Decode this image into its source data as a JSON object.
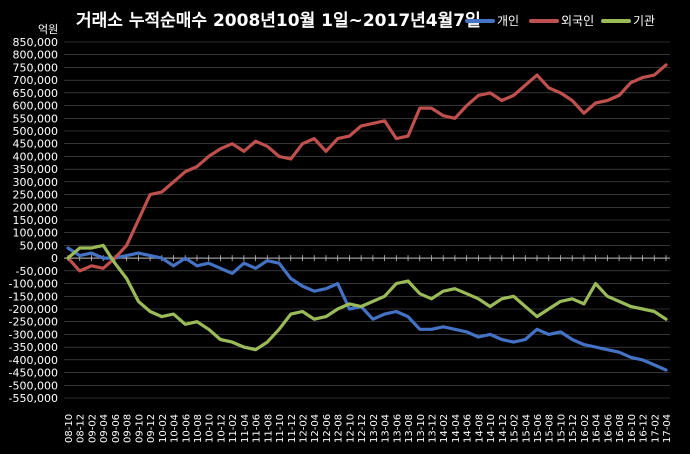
{
  "chart_data": {
    "type": "line",
    "title": "거래소 누적순매수 2008년10월 1일~2017년4월7일",
    "y_unit_label": "억원",
    "ylim": [
      -550000,
      850000
    ],
    "y_ticks": [
      850000,
      800000,
      750000,
      700000,
      650000,
      600000,
      550000,
      500000,
      450000,
      400000,
      350000,
      300000,
      250000,
      200000,
      150000,
      100000,
      50000,
      0,
      -50000,
      -100000,
      -150000,
      -200000,
      -250000,
      -300000,
      -350000,
      -400000,
      -450000,
      -500000,
      -550000
    ],
    "y_tick_labels": [
      "850,000",
      "800,000",
      "750,000",
      "700,000",
      "650,000",
      "600,000",
      "550,000",
      "500,000",
      "450,000",
      "400,000",
      "350,000",
      "300,000",
      "250,000",
      "200,000",
      "150,000",
      "100,000",
      "50,000",
      "0",
      "-50,000",
      "-100,000",
      "-150,000",
      "-200,000",
      "-250,000",
      "-300,000",
      "-350,000",
      "-400,000",
      "-450,000",
      "-500,000",
      "-550,000"
    ],
    "categories": [
      "08-10",
      "08-12",
      "09-02",
      "09-04",
      "09-06",
      "09-08",
      "09-10",
      "09-12",
      "10-02",
      "10-04",
      "10-06",
      "10-08",
      "10-10",
      "10-12",
      "11-02",
      "11-04",
      "11-06",
      "11-08",
      "11-10",
      "11-12",
      "12-02",
      "12-04",
      "12-06",
      "12-08",
      "12-10",
      "12-12",
      "13-02",
      "13-04",
      "13-06",
      "13-08",
      "13-10",
      "13-12",
      "14-02",
      "14-04",
      "14-06",
      "14-08",
      "14-10",
      "14-12",
      "15-02",
      "15-04",
      "15-06",
      "15-08",
      "15-10",
      "15-12",
      "16-02",
      "16-04",
      "16-06",
      "16-08",
      "16-10",
      "16-12",
      "17-02",
      "17-04"
    ],
    "grid": "horizontal",
    "legend_position": "top-right",
    "series": [
      {
        "name": "개인",
        "color": "#4472C4",
        "values": [
          40000,
          10000,
          20000,
          0,
          0,
          10000,
          20000,
          10000,
          0,
          -30000,
          0,
          -30000,
          -20000,
          -40000,
          -60000,
          -20000,
          -40000,
          -10000,
          -20000,
          -80000,
          -110000,
          -130000,
          -120000,
          -100000,
          -200000,
          -190000,
          -240000,
          -220000,
          -210000,
          -230000,
          -280000,
          -280000,
          -270000,
          -280000,
          -290000,
          -310000,
          -300000,
          -320000,
          -330000,
          -320000,
          -280000,
          -300000,
          -290000,
          -320000,
          -340000,
          -350000,
          -360000,
          -370000,
          -390000,
          -400000,
          -420000,
          -440000
        ]
      },
      {
        "name": "외국인",
        "color": "#C0504D",
        "values": [
          0,
          -50000,
          -30000,
          -40000,
          0,
          50000,
          150000,
          250000,
          260000,
          300000,
          340000,
          360000,
          400000,
          430000,
          450000,
          420000,
          460000,
          440000,
          400000,
          390000,
          450000,
          470000,
          420000,
          470000,
          480000,
          520000,
          530000,
          540000,
          470000,
          480000,
          590000,
          590000,
          560000,
          550000,
          600000,
          640000,
          650000,
          620000,
          640000,
          680000,
          720000,
          670000,
          650000,
          620000,
          570000,
          610000,
          620000,
          640000,
          690000,
          710000,
          720000,
          760000
        ]
      },
      {
        "name": "기관",
        "color": "#9BBB59",
        "values": [
          0,
          40000,
          40000,
          50000,
          -20000,
          -80000,
          -170000,
          -210000,
          -230000,
          -220000,
          -260000,
          -250000,
          -280000,
          -320000,
          -330000,
          -350000,
          -360000,
          -330000,
          -280000,
          -220000,
          -210000,
          -240000,
          -230000,
          -200000,
          -180000,
          -190000,
          -170000,
          -150000,
          -100000,
          -90000,
          -140000,
          -160000,
          -130000,
          -120000,
          -140000,
          -160000,
          -190000,
          -160000,
          -150000,
          -190000,
          -230000,
          -200000,
          -170000,
          -160000,
          -180000,
          -100000,
          -150000,
          -170000,
          -190000,
          -200000,
          -210000,
          -240000
        ]
      }
    ]
  }
}
